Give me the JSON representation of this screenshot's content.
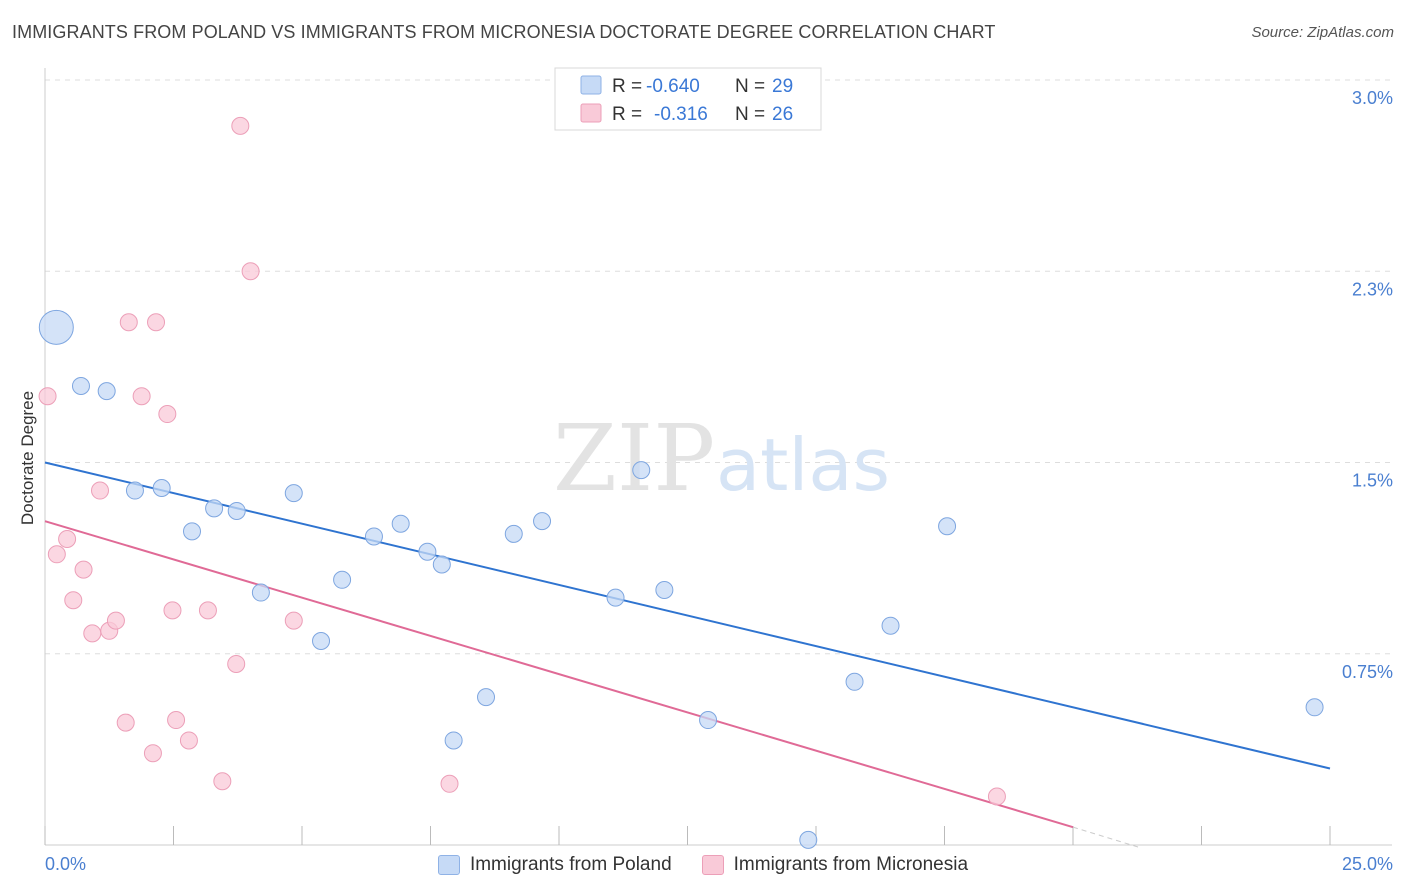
{
  "title": "IMMIGRANTS FROM POLAND VS IMMIGRANTS FROM MICRONESIA DOCTORATE DEGREE CORRELATION CHART",
  "source": "Source: ZipAtlas.com",
  "watermark": {
    "zip": "ZIP",
    "atlas": "atlas"
  },
  "legend": {
    "rows": [
      {
        "r_label": "R =",
        "r_value": "-0.640",
        "n_label": "N =",
        "n_value": "29",
        "color": "#c6daf6",
        "border": "#8fb2e6"
      },
      {
        "r_label": "R =",
        "r_value": "-0.316",
        "n_label": "N =",
        "n_value": "26",
        "color": "#f9cad8",
        "border": "#ec9fb8"
      }
    ]
  },
  "bottom_legend": {
    "poland": "Immigrants from Poland",
    "micronesia": "Immigrants from Micronesia"
  },
  "colors": {
    "poland_fill": "#c6daf6",
    "poland_stroke": "#7ea6e0",
    "poland_line": "#2f74d0",
    "micronesia_fill": "#f9cad8",
    "micronesia_stroke": "#ec9fb8",
    "micronesia_line": "#e06a96",
    "tick": "#4a7fd0",
    "grid": "#dddddd"
  },
  "chart_data": {
    "type": "scatter",
    "title": "IMMIGRANTS FROM POLAND VS IMMIGRANTS FROM MICRONESIA DOCTORATE DEGREE CORRELATION CHART",
    "xlabel": "",
    "ylabel": "Doctorate Degree",
    "xlim": [
      0,
      25
    ],
    "ylim": [
      0,
      3.0
    ],
    "x_ticks": [
      0,
      2.5,
      5,
      7.5,
      10,
      12.5,
      15,
      17.5,
      20,
      22.5,
      25
    ],
    "x_tick_labels": [
      "0.0%",
      "",
      "",
      "",
      "",
      "",
      "",
      "",
      "",
      "",
      "25.0%"
    ],
    "y_ticks": [
      0.75,
      1.5,
      2.25,
      3.0
    ],
    "y_tick_labels": [
      "0.75%",
      "1.5%",
      "2.3%",
      "3.0%"
    ],
    "grid": true,
    "legend_position": "top-center",
    "series": [
      {
        "name": "Immigrants from Poland",
        "r": -0.64,
        "n": 29,
        "points": [
          {
            "x": 0.22,
            "y": 2.03,
            "size": "large"
          },
          {
            "x": 0.7,
            "y": 1.8
          },
          {
            "x": 1.2,
            "y": 1.78
          },
          {
            "x": 1.75,
            "y": 1.39
          },
          {
            "x": 2.27,
            "y": 1.4
          },
          {
            "x": 2.86,
            "y": 1.23
          },
          {
            "x": 3.29,
            "y": 1.32
          },
          {
            "x": 3.73,
            "y": 1.31
          },
          {
            "x": 4.2,
            "y": 0.99
          },
          {
            "x": 4.84,
            "y": 1.38
          },
          {
            "x": 5.37,
            "y": 0.8
          },
          {
            "x": 5.78,
            "y": 1.04
          },
          {
            "x": 6.4,
            "y": 1.21
          },
          {
            "x": 6.92,
            "y": 1.26
          },
          {
            "x": 7.44,
            "y": 1.15
          },
          {
            "x": 7.72,
            "y": 1.1
          },
          {
            "x": 7.95,
            "y": 0.41
          },
          {
            "x": 8.58,
            "y": 0.58
          },
          {
            "x": 9.12,
            "y": 1.22
          },
          {
            "x": 9.67,
            "y": 1.27
          },
          {
            "x": 11.6,
            "y": 1.47
          },
          {
            "x": 11.1,
            "y": 0.97
          },
          {
            "x": 12.05,
            "y": 1.0
          },
          {
            "x": 12.9,
            "y": 0.49
          },
          {
            "x": 14.85,
            "y": 0.02
          },
          {
            "x": 15.75,
            "y": 0.64
          },
          {
            "x": 16.45,
            "y": 0.86
          },
          {
            "x": 17.55,
            "y": 1.25
          },
          {
            "x": 24.7,
            "y": 0.54
          }
        ],
        "trend": {
          "x": [
            0,
            25
          ],
          "y": [
            1.5,
            0.3
          ]
        }
      },
      {
        "name": "Immigrants from Micronesia",
        "r": -0.316,
        "n": 26,
        "points": [
          {
            "x": 0.05,
            "y": 1.76
          },
          {
            "x": 0.23,
            "y": 1.14
          },
          {
            "x": 0.43,
            "y": 1.2
          },
          {
            "x": 0.55,
            "y": 0.96
          },
          {
            "x": 0.75,
            "y": 1.08
          },
          {
            "x": 0.92,
            "y": 0.83
          },
          {
            "x": 1.07,
            "y": 1.39
          },
          {
            "x": 1.25,
            "y": 0.84
          },
          {
            "x": 1.38,
            "y": 0.88
          },
          {
            "x": 1.57,
            "y": 0.48
          },
          {
            "x": 1.63,
            "y": 2.05
          },
          {
            "x": 1.88,
            "y": 1.76
          },
          {
            "x": 2.1,
            "y": 0.36
          },
          {
            "x": 2.16,
            "y": 2.05
          },
          {
            "x": 2.38,
            "y": 1.69
          },
          {
            "x": 2.48,
            "y": 0.92
          },
          {
            "x": 2.55,
            "y": 0.49
          },
          {
            "x": 2.8,
            "y": 0.41
          },
          {
            "x": 3.17,
            "y": 0.92
          },
          {
            "x": 3.45,
            "y": 0.25
          },
          {
            "x": 3.72,
            "y": 0.71
          },
          {
            "x": 3.8,
            "y": 2.82
          },
          {
            "x": 4.0,
            "y": 2.25
          },
          {
            "x": 4.84,
            "y": 0.88
          },
          {
            "x": 7.87,
            "y": 0.24
          },
          {
            "x": 18.52,
            "y": 0.19
          }
        ],
        "trend": {
          "x": [
            0,
            20
          ],
          "y": [
            1.27,
            0.07
          ]
        },
        "trend_dashed_extension": {
          "x": [
            20,
            21.3
          ],
          "y": [
            0.07,
            -0.01
          ]
        }
      }
    ]
  }
}
